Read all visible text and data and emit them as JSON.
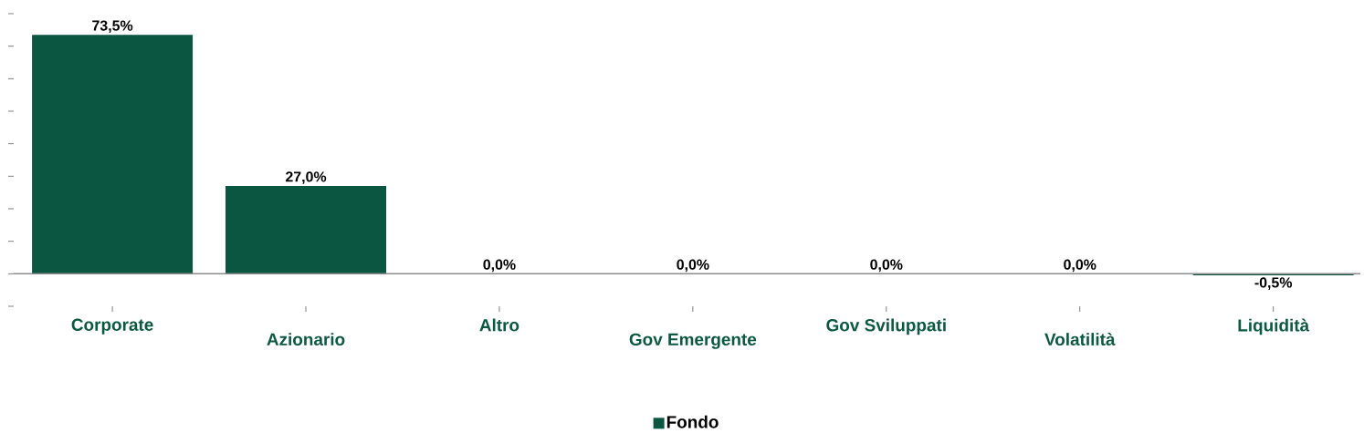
{
  "chart_data": {
    "type": "bar",
    "categories": [
      "Corporate",
      "Azionario",
      "Altro",
      "Gov Emergente",
      "Gov Sviluppati",
      "Volatilità",
      "Liquidità"
    ],
    "series": [
      {
        "name": "Fondo",
        "color": "#0b5640",
        "values": [
          73.5,
          27.0,
          0.0,
          0.0,
          0.0,
          0.0,
          -0.5
        ],
        "value_labels": [
          "73,5%",
          "27,0%",
          "0,0%",
          "0,0%",
          "0,0%",
          "0,0%",
          "-0,5%"
        ]
      }
    ],
    "yticks": [
      {
        "value": -10,
        "label": null
      },
      {
        "value": 0,
        "label": null
      },
      {
        "value": 10,
        "label": null
      },
      {
        "value": 20,
        "label": null
      },
      {
        "value": 30,
        "label": null
      },
      {
        "value": 40,
        "label": null
      },
      {
        "value": 50,
        "label": null
      },
      {
        "value": 60,
        "label": null
      },
      {
        "value": 70,
        "label": null
      },
      {
        "value": 80,
        "label": null
      }
    ],
    "ref_lines": [
      {
        "axis": "y",
        "value": 0,
        "color": "#8c8c8c"
      }
    ],
    "legend": "bottom",
    "grid": false
  }
}
